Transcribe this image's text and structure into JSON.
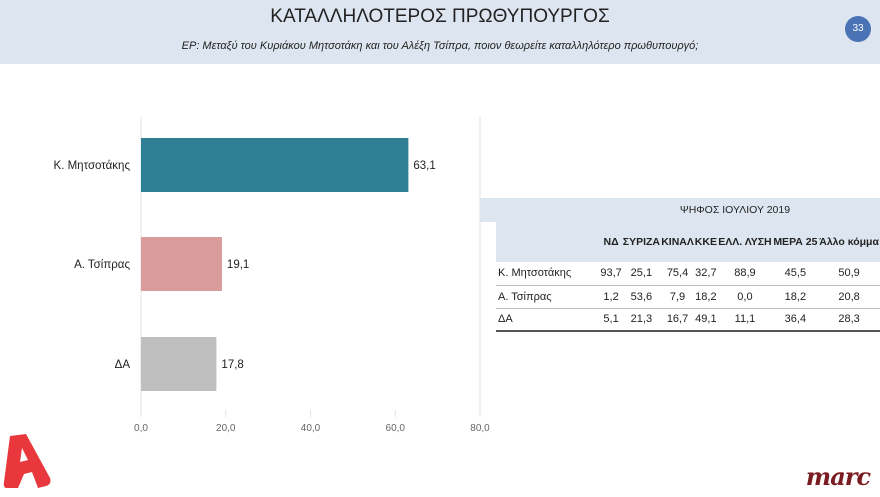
{
  "header": {
    "title": "ΚΑΤΑΛΛΗΛΟΤΕΡΟΣ ΠΡΩΘΥΠΟΥΡΓΟΣ",
    "subtitle": "ΕΡ: Μεταξύ του Κυριάκου Μητσοτάκη και του Αλέξη Τσίπρα, ποιον θεωρείτε καταλληλότερο πρωθυπουργό;",
    "page_number": "33"
  },
  "chart_data": {
    "type": "bar",
    "orientation": "horizontal",
    "categories": [
      "Κ. Μητσοτάκης",
      "Α. Τσίπρας",
      "ΔΑ"
    ],
    "values": [
      63.1,
      19.1,
      17.8
    ],
    "value_labels": [
      "63,1",
      "19,1",
      "17,8"
    ],
    "colors": [
      "#2e7f93",
      "#d99b9b",
      "#bfbfbf"
    ],
    "xlim": [
      0,
      80
    ],
    "xticks": [
      "0,0",
      "20,0",
      "40,0",
      "60,0",
      "80,0"
    ],
    "tick_values": [
      0,
      20,
      40,
      60,
      80
    ],
    "grid": true
  },
  "table": {
    "title": "ΨΗΦΟΣ ΙΟΥΛΙΟΥ 2019",
    "columns": [
      "ΝΔ",
      "ΣΥΡΙΖΑ",
      "ΚΙΝΑΛ",
      "ΚΚΕ",
      "ΕΛΛ. ΛΥΣΗ",
      "ΜΕΡΑ 25",
      "Άλλο κόμμα"
    ],
    "rows": [
      {
        "label": "Κ. Μητσοτάκης",
        "values": [
          "93,7",
          "25,1",
          "75,4",
          "32,7",
          "88,9",
          "45,5",
          "50,9"
        ]
      },
      {
        "label": "Α. Τσίπρας",
        "values": [
          "1,2",
          "53,6",
          "7,9",
          "18,2",
          "0,0",
          "18,2",
          "20,8"
        ]
      },
      {
        "label": "ΔΑ",
        "values": [
          "5,1",
          "21,3",
          "16,7",
          "49,1",
          "11,1",
          "36,4",
          "28,3"
        ]
      }
    ]
  },
  "logos": {
    "left": "Alpha",
    "right": "marc"
  }
}
